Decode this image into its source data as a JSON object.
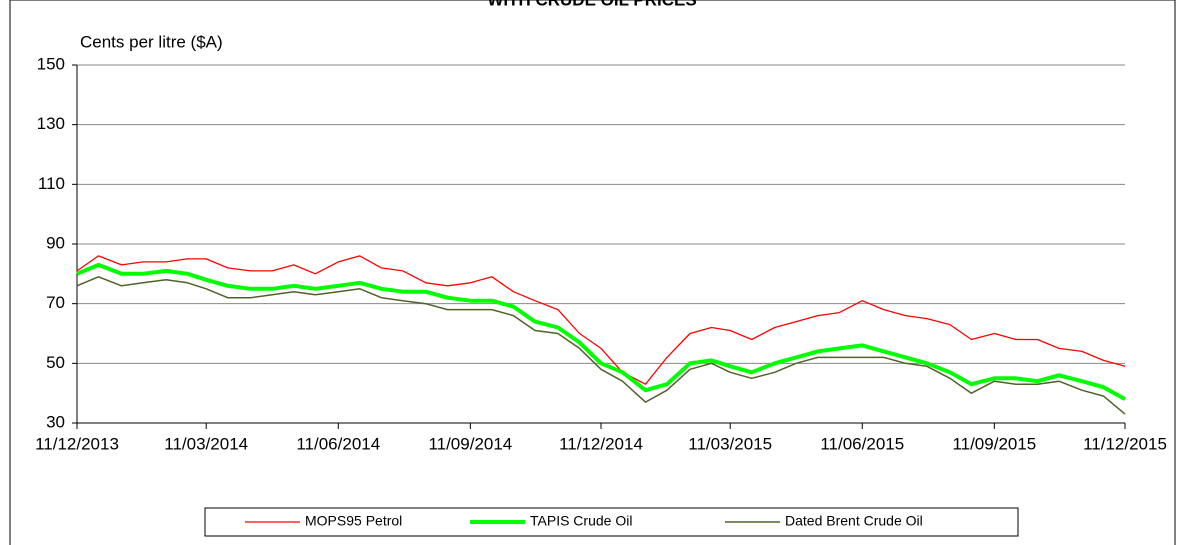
{
  "chart_data": {
    "type": "line",
    "title": "WITH CRUDE OIL PRICES",
    "y_label": "Cents per litre ($A)",
    "x": [
      "11/12/2013",
      "26/12/2013",
      "11/01/2014",
      "26/01/2014",
      "11/02/2014",
      "26/02/2014",
      "11/03/2014",
      "26/03/2014",
      "11/04/2014",
      "26/04/2014",
      "11/05/2014",
      "26/05/2014",
      "11/06/2014",
      "26/06/2014",
      "11/07/2014",
      "26/07/2014",
      "11/08/2014",
      "26/08/2014",
      "11/09/2014",
      "26/09/2014",
      "11/10/2014",
      "26/10/2014",
      "11/11/2014",
      "26/11/2014",
      "11/12/2014",
      "26/12/2014",
      "11/01/2015",
      "26/01/2015",
      "11/02/2015",
      "26/02/2015",
      "11/03/2015",
      "26/03/2015",
      "11/04/2015",
      "26/04/2015",
      "11/05/2015",
      "26/05/2015",
      "11/06/2015",
      "26/06/2015",
      "11/07/2015",
      "26/07/2015",
      "11/08/2015",
      "26/08/2015",
      "11/09/2015",
      "26/09/2015",
      "11/10/2015",
      "26/10/2015",
      "11/11/2015",
      "26/11/2015",
      "11/12/2015"
    ],
    "series": [
      {
        "name": "MOPS95 Petrol",
        "color": "#ff0000",
        "values": [
          81,
          86,
          83,
          84,
          84,
          85,
          85,
          82,
          81,
          81,
          83,
          80,
          84,
          86,
          82,
          81,
          77,
          76,
          77,
          79,
          74,
          71,
          68,
          60,
          55,
          47,
          43,
          52,
          60,
          62,
          61,
          58,
          62,
          64,
          66,
          67,
          71,
          68,
          66,
          65,
          63,
          58,
          60,
          58,
          58,
          55,
          54,
          51,
          49
        ]
      },
      {
        "name": "TAPIS Crude Oil",
        "color": "#00ff00",
        "values": [
          80,
          83,
          80,
          80,
          81,
          80,
          78,
          76,
          75,
          75,
          76,
          75,
          76,
          77,
          75,
          74,
          74,
          72,
          71,
          71,
          69,
          64,
          62,
          57,
          50,
          47,
          41,
          43,
          50,
          51,
          49,
          47,
          50,
          52,
          54,
          55,
          56,
          54,
          52,
          50,
          47,
          43,
          45,
          45,
          44,
          46,
          44,
          42,
          38
        ]
      },
      {
        "name": "Dated Brent Crude Oil",
        "color": "#4f6228",
        "values": [
          76,
          79,
          76,
          77,
          78,
          77,
          75,
          72,
          72,
          73,
          74,
          73,
          74,
          75,
          72,
          71,
          70,
          68,
          68,
          68,
          66,
          61,
          60,
          55,
          48,
          44,
          37,
          41,
          48,
          50,
          47,
          45,
          47,
          50,
          52,
          52,
          52,
          52,
          50,
          49,
          45,
          40,
          44,
          43,
          43,
          44,
          41,
          39,
          33
        ]
      }
    ],
    "xlim": [
      "11/12/2013",
      "11/12/2015"
    ],
    "xticks": [
      "11/12/2013",
      "11/03/2014",
      "11/06/2014",
      "11/09/2014",
      "11/12/2014",
      "11/03/2015",
      "11/06/2015",
      "11/09/2015",
      "11/12/2015"
    ],
    "ylim": [
      30,
      150
    ],
    "yticks": [
      30,
      50,
      70,
      90,
      110,
      130,
      150
    ],
    "grid": true,
    "legend": "bottom"
  }
}
